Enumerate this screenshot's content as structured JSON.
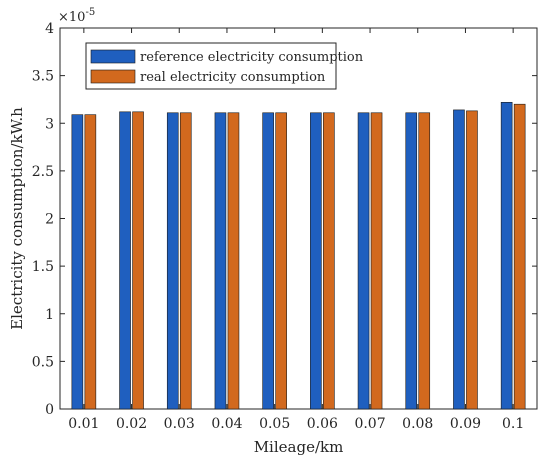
{
  "chart_data": {
    "type": "bar",
    "xlabel": "Mileage/km",
    "ylabel": "Electricity consumption/kW.h",
    "y_multiplier": "×10",
    "y_exponent": "-5",
    "ylim": [
      0,
      4
    ],
    "y_ticks": [
      "0",
      "0.5",
      "1",
      "1.5",
      "2",
      "2.5",
      "3",
      "3.5",
      "4"
    ],
    "categories": [
      "0.01",
      "0.02",
      "0.03",
      "0.04",
      "0.05",
      "0.06",
      "0.07",
      "0.08",
      "0.09",
      "0.1"
    ],
    "series": [
      {
        "name": "reference electricity consumption",
        "color": "#1f5fbf",
        "values": [
          3.09,
          3.12,
          3.11,
          3.11,
          3.11,
          3.11,
          3.11,
          3.11,
          3.14,
          3.22
        ]
      },
      {
        "name": "real electricity consumption",
        "color": "#d2691e",
        "values": [
          3.09,
          3.12,
          3.11,
          3.11,
          3.11,
          3.11,
          3.11,
          3.11,
          3.13,
          3.2
        ]
      }
    ],
    "legend_position": "top-left",
    "grid": false
  }
}
